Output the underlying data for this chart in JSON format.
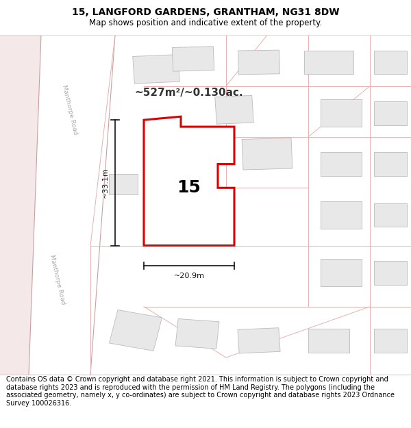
{
  "title": "15, LANGFORD GARDENS, GRANTHAM, NG31 8DW",
  "subtitle": "Map shows position and indicative extent of the property.",
  "area_label": "~527m²/~0.130ac.",
  "plot_number": "15",
  "dim_width": "~20.9m",
  "dim_height": "~33.1m",
  "road_label": "Manthorpe Road",
  "footer": "Contains OS data © Crown copyright and database right 2021. This information is subject to Crown copyright and database rights 2023 and is reproduced with the permission of HM Land Registry. The polygons (including the associated geometry, namely x, y co-ordinates) are subject to Crown copyright and database rights 2023 Ordnance Survey 100026316.",
  "map_bg": "#ffffff",
  "left_pink_bg": "#f5e8e8",
  "road_white": "#ffffff",
  "road_border_color": "#c8a0a0",
  "plot_fill": "#ffffff",
  "plot_border": "#dd0000",
  "neighbor_fill": "#e8e8e8",
  "neighbor_border": "#bbbbbb",
  "road_line_color": "#e8b0b0",
  "title_fontsize": 10,
  "subtitle_fontsize": 8.5,
  "footer_fontsize": 7.0,
  "road_label_color": "#aaaaaa",
  "area_label_color": "#333333",
  "dim_color": "#111111"
}
